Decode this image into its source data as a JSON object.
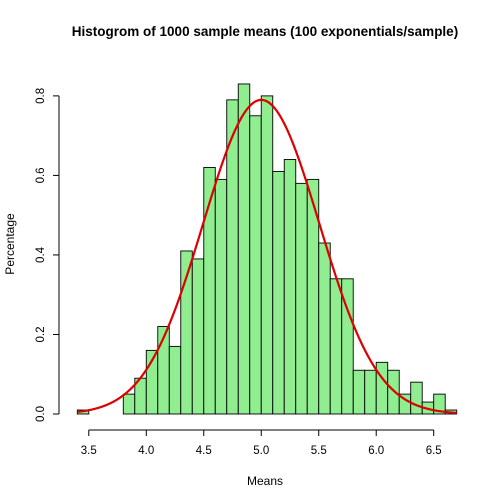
{
  "chart_data": {
    "type": "bar",
    "title": "Histogrom of 1000 sample means (100 exponentials/sample)",
    "xlabel": "Means",
    "ylabel": "Percentage",
    "xlim": [
      3.38,
      6.72
    ],
    "ylim": [
      0,
      0.85
    ],
    "xticks": [
      "3.5",
      "4.0",
      "4.5",
      "5.0",
      "5.5",
      "6.0",
      "6.5"
    ],
    "yticks": [
      "0.0",
      "0.2",
      "0.4",
      "0.6",
      "0.8"
    ],
    "bin_width": 0.1,
    "bins": [
      {
        "x0": 3.4,
        "x1": 3.5,
        "value": 0.01
      },
      {
        "x0": 3.5,
        "x1": 3.6,
        "value": 0.0
      },
      {
        "x0": 3.6,
        "x1": 3.7,
        "value": 0.0
      },
      {
        "x0": 3.7,
        "x1": 3.8,
        "value": 0.0
      },
      {
        "x0": 3.8,
        "x1": 3.9,
        "value": 0.05
      },
      {
        "x0": 3.9,
        "x1": 4.0,
        "value": 0.09
      },
      {
        "x0": 4.0,
        "x1": 4.1,
        "value": 0.16
      },
      {
        "x0": 4.1,
        "x1": 4.2,
        "value": 0.22
      },
      {
        "x0": 4.2,
        "x1": 4.3,
        "value": 0.17
      },
      {
        "x0": 4.3,
        "x1": 4.4,
        "value": 0.41
      },
      {
        "x0": 4.4,
        "x1": 4.5,
        "value": 0.39
      },
      {
        "x0": 4.5,
        "x1": 4.6,
        "value": 0.62
      },
      {
        "x0": 4.6,
        "x1": 4.7,
        "value": 0.59
      },
      {
        "x0": 4.7,
        "x1": 4.8,
        "value": 0.79
      },
      {
        "x0": 4.8,
        "x1": 4.9,
        "value": 0.83
      },
      {
        "x0": 4.9,
        "x1": 5.0,
        "value": 0.75
      },
      {
        "x0": 5.0,
        "x1": 5.1,
        "value": 0.8
      },
      {
        "x0": 5.1,
        "x1": 5.2,
        "value": 0.61
      },
      {
        "x0": 5.2,
        "x1": 5.3,
        "value": 0.64
      },
      {
        "x0": 5.3,
        "x1": 5.4,
        "value": 0.58
      },
      {
        "x0": 5.4,
        "x1": 5.5,
        "value": 0.59
      },
      {
        "x0": 5.5,
        "x1": 5.6,
        "value": 0.43
      },
      {
        "x0": 5.6,
        "x1": 5.7,
        "value": 0.34
      },
      {
        "x0": 5.7,
        "x1": 5.8,
        "value": 0.34
      },
      {
        "x0": 5.8,
        "x1": 5.9,
        "value": 0.11
      },
      {
        "x0": 5.9,
        "x1": 6.0,
        "value": 0.11
      },
      {
        "x0": 6.0,
        "x1": 6.1,
        "value": 0.13
      },
      {
        "x0": 6.1,
        "x1": 6.2,
        "value": 0.11
      },
      {
        "x0": 6.2,
        "x1": 6.3,
        "value": 0.05
      },
      {
        "x0": 6.3,
        "x1": 6.4,
        "value": 0.08
      },
      {
        "x0": 6.4,
        "x1": 6.5,
        "value": 0.03
      },
      {
        "x0": 6.5,
        "x1": 6.6,
        "value": 0.05
      },
      {
        "x0": 6.6,
        "x1": 6.7,
        "value": 0.01
      }
    ],
    "density_curve": {
      "type": "normal",
      "mean": 5.0,
      "sd": 0.505,
      "x_range": [
        3.4,
        6.7
      ]
    },
    "grid": false,
    "colors": {
      "bar_fill": "#90ee90",
      "bar_stroke": "#000000",
      "curve": "#dd0000"
    }
  }
}
